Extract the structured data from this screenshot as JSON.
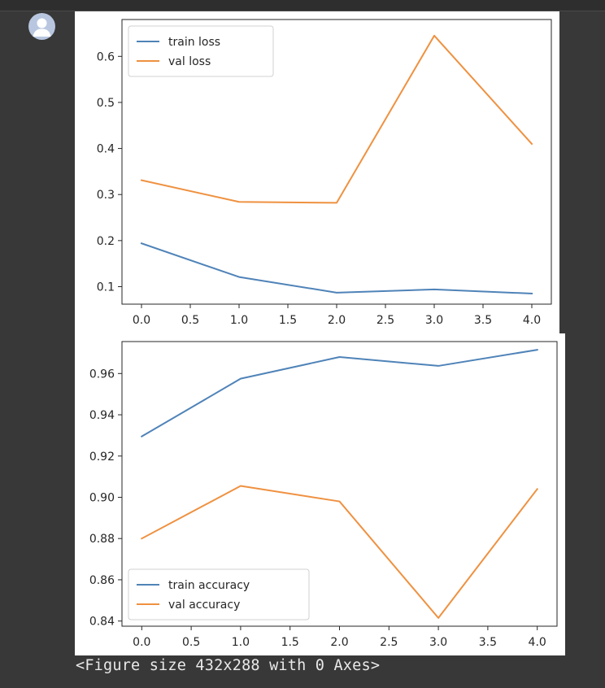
{
  "output": {
    "text": "<Figure size 432x288 with 0 Axes>"
  },
  "colors": {
    "page_bg": "#383838",
    "train": "#4f83b8",
    "val": "#ef9140",
    "avatar_bg": "#b8c6e0",
    "avatar_fg": "#ffffff"
  },
  "icons": {
    "avatar": "user-avatar-icon"
  },
  "chart_data": [
    {
      "type": "line",
      "title": "",
      "xlabel": "",
      "ylabel": "",
      "x": [
        0,
        1,
        2,
        3,
        4
      ],
      "xlim": [
        -0.2,
        4.2
      ],
      "ylim": [
        0.062,
        0.68
      ],
      "xticks": [
        0,
        0.5,
        1,
        1.5,
        2,
        2.5,
        3,
        3.5,
        4
      ],
      "xtick_labels": [
        "0.0",
        "0.5",
        "1.0",
        "1.5",
        "2.0",
        "2.5",
        "3.0",
        "3.5",
        "4.0"
      ],
      "yticks": [
        0.1,
        0.2,
        0.3,
        0.4,
        0.5,
        0.6
      ],
      "ytick_labels": [
        "0.1",
        "0.2",
        "0.3",
        "0.4",
        "0.5",
        "0.6"
      ],
      "legend": "top-left",
      "grid": false,
      "series": [
        {
          "name": "train loss",
          "color": "#4f83b8",
          "values": [
            0.194,
            0.121,
            0.087,
            0.094,
            0.085
          ]
        },
        {
          "name": "val loss",
          "color": "#ef9140",
          "values": [
            0.331,
            0.284,
            0.282,
            0.645,
            0.41
          ]
        }
      ]
    },
    {
      "type": "line",
      "title": "",
      "xlabel": "",
      "ylabel": "",
      "x": [
        0,
        1,
        2,
        3,
        4
      ],
      "xlim": [
        -0.2,
        4.2
      ],
      "ylim": [
        0.8375,
        0.9755
      ],
      "xticks": [
        0,
        0.5,
        1,
        1.5,
        2,
        2.5,
        3,
        3.5,
        4
      ],
      "xtick_labels": [
        "0.0",
        "0.5",
        "1.0",
        "1.5",
        "2.0",
        "2.5",
        "3.0",
        "3.5",
        "4.0"
      ],
      "yticks": [
        0.84,
        0.86,
        0.88,
        0.9,
        0.92,
        0.94,
        0.96
      ],
      "ytick_labels": [
        "0.84",
        "0.86",
        "0.88",
        "0.90",
        "0.92",
        "0.94",
        "0.96"
      ],
      "legend": "bottom-left",
      "grid": false,
      "series": [
        {
          "name": "train accuracy",
          "color": "#4f83b8",
          "values": [
            0.9295,
            0.9575,
            0.968,
            0.9637,
            0.9715
          ]
        },
        {
          "name": "val accuracy",
          "color": "#ef9140",
          "values": [
            0.88,
            0.9055,
            0.898,
            0.8415,
            0.904
          ]
        }
      ]
    }
  ]
}
